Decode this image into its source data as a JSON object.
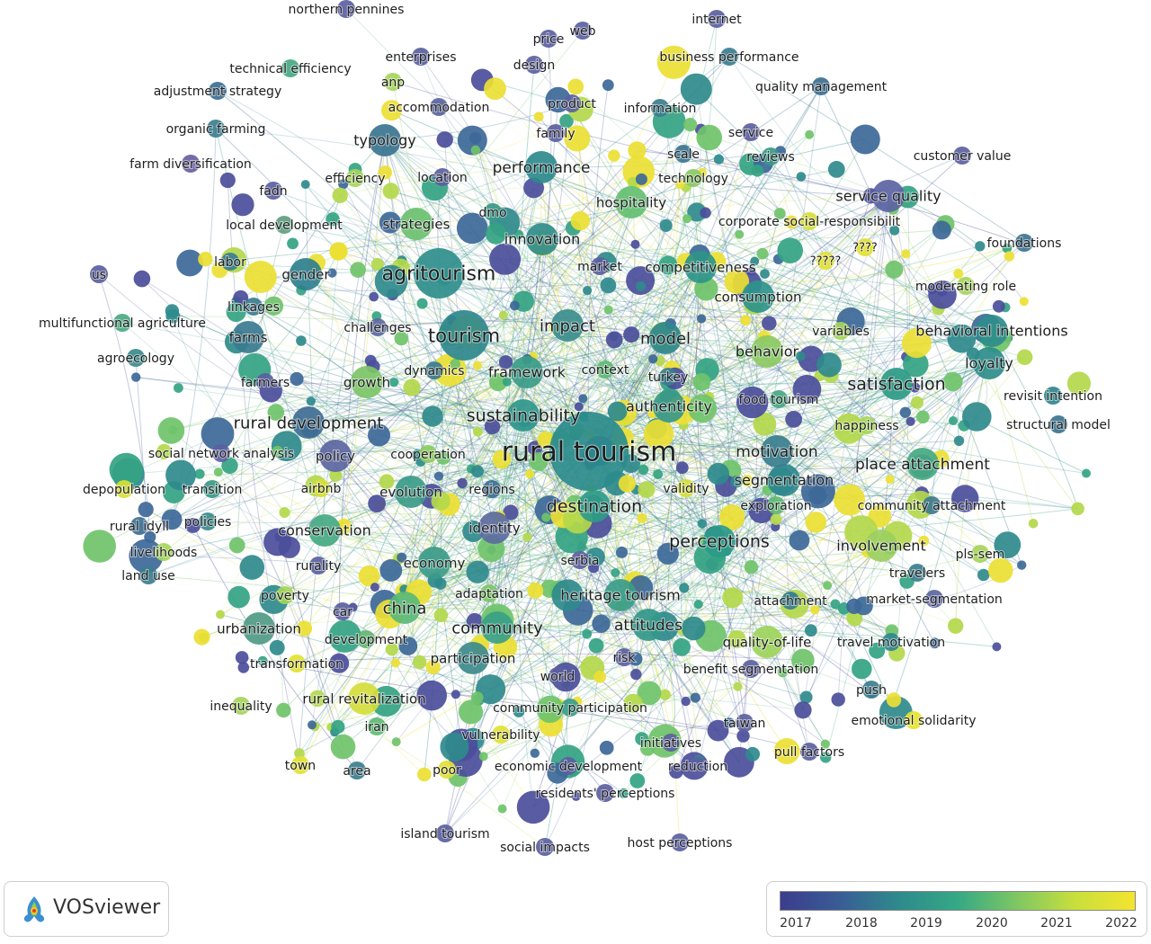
{
  "labels": [
    {
      "t": "rural tourism",
      "c": "#2b8b8c",
      "s": 30,
      "n": "lg"
    },
    {
      "t": "agritourism",
      "c": "#2f8e8c",
      "s": 22,
      "n": "lg"
    },
    {
      "t": "tourism",
      "c": "#2f888d",
      "s": 21,
      "n": "lg"
    },
    {
      "t": "sustainability",
      "c": "#2e968a",
      "s": 19,
      "n": "md"
    },
    {
      "t": "destination",
      "c": "#2f9b87",
      "s": 19,
      "n": "md"
    },
    {
      "t": "perceptions",
      "c": "#2b9a88",
      "s": 19,
      "n": "md"
    },
    {
      "t": "satisfaction",
      "c": "#2c9a87",
      "s": 19,
      "n": "md"
    },
    {
      "t": "impact",
      "c": "#3b8d8c",
      "s": 18,
      "n": "md"
    },
    {
      "t": "model",
      "c": "#2f878d",
      "s": 18,
      "n": "md"
    },
    {
      "t": "rural development",
      "c": "#3e6d93",
      "s": 18,
      "n": "md"
    },
    {
      "t": "community",
      "c": "#3a9f86",
      "s": 18,
      "n": "md"
    },
    {
      "t": "china",
      "c": "#5ab877",
      "s": 18,
      "n": "md"
    },
    {
      "t": "performance",
      "c": "#2d8a8c",
      "s": 17,
      "n": "md"
    },
    {
      "t": "motivation",
      "c": "#3a7e8e",
      "s": 17,
      "n": "md"
    },
    {
      "t": "place attachment",
      "c": "#47a982",
      "s": 17,
      "n": "md"
    },
    {
      "t": "attitudes",
      "c": "#33988a",
      "s": 17,
      "n": "md"
    },
    {
      "t": "conservation",
      "c": "#45a983",
      "s": 16,
      "n": "md"
    },
    {
      "t": "segmentation",
      "c": "#2f878d",
      "s": 16,
      "n": "md"
    },
    {
      "t": "framework",
      "c": "#3b9c88",
      "s": 16,
      "n": "md"
    },
    {
      "t": "typology",
      "c": "#3b7490",
      "s": 16,
      "n": "md"
    },
    {
      "t": "innovation",
      "c": "#2f8c8c",
      "s": 16,
      "n": "md"
    },
    {
      "t": "heritage tourism",
      "c": "#399c88",
      "s": 16,
      "n": "md"
    },
    {
      "t": "involvement",
      "c": "#9bd05e",
      "s": 16,
      "n": "md"
    },
    {
      "t": "service quality",
      "c": "#5b63a3",
      "s": 16,
      "n": "md"
    },
    {
      "t": "behavioral intentions",
      "c": "#2e8c8c",
      "s": 16,
      "n": "md"
    },
    {
      "t": "loyalty",
      "c": "#2c8d8b",
      "s": 16,
      "n": "md"
    },
    {
      "t": "behavior",
      "c": "#8bc962",
      "s": 16,
      "n": "md"
    },
    {
      "t": "authenticity",
      "c": "#3b9887",
      "s": 16,
      "n": "md"
    },
    {
      "t": "competitiveness",
      "c": "#2e9488",
      "s": 15,
      "n": "md"
    },
    {
      "t": "hospitality",
      "c": "#64bf71",
      "s": 15,
      "n": "md"
    },
    {
      "t": "strategies",
      "c": "#6ac06e",
      "s": 15,
      "n": "md"
    },
    {
      "t": "policy",
      "c": "#5b66a1",
      "s": 15,
      "n": "md"
    },
    {
      "t": "growth",
      "c": "#7cc467",
      "s": 15,
      "n": "md"
    },
    {
      "t": "economy",
      "c": "#3b9b88",
      "s": 15,
      "n": "md"
    },
    {
      "t": "identity",
      "c": "#5b6ba0",
      "s": 15,
      "n": "md"
    },
    {
      "t": "evolution",
      "c": "#3b9b88",
      "s": 15,
      "n": "md"
    },
    {
      "t": "participation",
      "c": "#3c8a8c",
      "s": 15,
      "n": "md"
    },
    {
      "t": "gender",
      "c": "#2f7f8e",
      "s": 15,
      "n": "md"
    },
    {
      "t": "farms",
      "c": "#3a7a8f",
      "s": 15,
      "n": "md"
    },
    {
      "t": "urbanization",
      "c": "#4f9a86",
      "s": 15,
      "n": "md"
    },
    {
      "t": "development",
      "c": "#62b572",
      "s": 14,
      "n": "sm"
    },
    {
      "t": "community participation",
      "c": "#3b9c88",
      "s": 14,
      "n": "sm"
    },
    {
      "t": "rural revitalization",
      "c": "#d4dd3a",
      "s": 15,
      "n": "md"
    },
    {
      "t": "consumption",
      "c": "#2e948a",
      "s": 15,
      "n": "md"
    },
    {
      "t": "quality-of-life",
      "c": "#9dd25b",
      "s": 15,
      "n": "md"
    },
    {
      "t": "travel motivation",
      "c": "#2f878d",
      "s": 14,
      "n": "sm"
    },
    {
      "t": "food tourism",
      "c": "#46a782",
      "s": 14,
      "n": "sm"
    },
    {
      "t": "enterprises",
      "c": "#5a5f9f",
      "s": 14,
      "n": "sm"
    },
    {
      "t": "accommodation",
      "c": "#5b63a0",
      "s": 14,
      "n": "sm"
    },
    {
      "t": "information",
      "c": "#3b7e8f",
      "s": 14,
      "n": "sm"
    },
    {
      "t": "business performance",
      "c": "#3b7e8f",
      "s": 14,
      "n": "sm"
    },
    {
      "t": "internet",
      "c": "#5b5fa0",
      "s": 14,
      "n": "sm"
    },
    {
      "t": "technology",
      "c": "#8bc962",
      "s": 14,
      "n": "sm"
    },
    {
      "t": "farm diversification",
      "c": "#6a5ea1",
      "s": 14,
      "n": "sm"
    },
    {
      "t": "local development",
      "c": "#5f9e80",
      "s": 14,
      "n": "sm"
    },
    {
      "t": "challenges",
      "c": "#5c68a0",
      "s": 14,
      "n": "sm"
    },
    {
      "t": "dynamics",
      "c": "#3a7a8f",
      "s": 14,
      "n": "sm"
    },
    {
      "t": "cooperation",
      "c": "#8ccb60",
      "s": 14,
      "n": "sm"
    },
    {
      "t": "regions",
      "c": "#3c6f93",
      "s": 14,
      "n": "sm"
    },
    {
      "t": "adaptation",
      "c": "#7cc468",
      "s": 14,
      "n": "sm"
    },
    {
      "t": "exploration",
      "c": "#5fb873",
      "s": 14,
      "n": "sm"
    },
    {
      "t": "community attachment",
      "c": "#3d7a8f",
      "s": 14,
      "n": "sm"
    },
    {
      "t": "attachment",
      "c": "#3b7e8f",
      "s": 14,
      "n": "sm"
    },
    {
      "t": "market-segmentation",
      "c": "#5b66a1",
      "s": 14,
      "n": "sm"
    },
    {
      "t": "benefit segmentation",
      "c": "#5b5fa0",
      "s": 14,
      "n": "sm"
    },
    {
      "t": "revisit intention",
      "c": "#2f878d",
      "s": 14,
      "n": "sm"
    },
    {
      "t": "structural model",
      "c": "#3c7490",
      "s": 14,
      "n": "sm"
    },
    {
      "t": "moderating role",
      "c": "#a4d459",
      "s": 14,
      "n": "sm"
    },
    {
      "t": "foundations",
      "c": "#3c7490",
      "s": 14,
      "n": "sm"
    },
    {
      "t": "customer value",
      "c": "#5b5fa0",
      "s": 14,
      "n": "sm"
    },
    {
      "t": "quality management",
      "c": "#3b6f91",
      "s": 14,
      "n": "sm"
    },
    {
      "t": "corporate social-responsibilit",
      "c": "#d6de3a",
      "s": 14,
      "n": "sm"
    },
    {
      "t": "northern pennines",
      "c": "#5b5fa0",
      "s": 14,
      "n": "sm"
    },
    {
      "t": "technical efficiency",
      "c": "#48a882",
      "s": 14,
      "n": "sm"
    },
    {
      "t": "adjustment strategy",
      "c": "#3c6f93",
      "s": 14,
      "n": "sm"
    },
    {
      "t": "organic farming",
      "c": "#3b7e8f",
      "s": 14,
      "n": "sm"
    },
    {
      "t": "multifunctional agriculture",
      "c": "#4aa982",
      "s": 14,
      "n": "sm"
    },
    {
      "t": "agroecology",
      "c": "#3c8a8c",
      "s": 14,
      "n": "sm"
    },
    {
      "t": "social network analysis",
      "c": "#5b5fa0",
      "s": 14,
      "n": "sm"
    },
    {
      "t": "depopulation",
      "c": "#d8df38",
      "s": 14,
      "n": "sm"
    },
    {
      "t": "transition",
      "c": "#3b9887",
      "s": 14,
      "n": "sm"
    },
    {
      "t": "rural idyll",
      "c": "#3c6f93",
      "s": 14,
      "n": "sm"
    },
    {
      "t": "policies",
      "c": "#3b8a8c",
      "s": 14,
      "n": "sm"
    },
    {
      "t": "livelihoods",
      "c": "#a6d55a",
      "s": 14,
      "n": "sm"
    },
    {
      "t": "land use",
      "c": "#3b7e8f",
      "s": 14,
      "n": "sm"
    },
    {
      "t": "poverty",
      "c": "#a6d55a",
      "s": 14,
      "n": "sm"
    },
    {
      "t": "transformation",
      "c": "#e1e133",
      "s": 14,
      "n": "sm"
    },
    {
      "t": "inequality",
      "c": "#a6d55a",
      "s": 14,
      "n": "sm"
    },
    {
      "t": "island tourism",
      "c": "#5b5fa0",
      "s": 14,
      "n": "sm"
    },
    {
      "t": "social impacts",
      "c": "#5b5fa0",
      "s": 14,
      "n": "sm"
    },
    {
      "t": "host perceptions",
      "c": "#5b5fa0",
      "s": 14,
      "n": "sm"
    },
    {
      "t": "economic development",
      "c": "#5b5fa0",
      "s": 14,
      "n": "sm"
    },
    {
      "t": "residents' perceptions",
      "c": "#5b5fa0",
      "s": 14,
      "n": "sm"
    },
    {
      "t": "vulnerability",
      "c": "#e1e133",
      "s": 14,
      "n": "sm"
    },
    {
      "t": "emotional solidarity",
      "c": "#e6e231",
      "s": 14,
      "n": "sm"
    },
    {
      "t": "pull factors",
      "c": "#5b5fa0",
      "s": 14,
      "n": "sm"
    },
    {
      "t": "pls-sem",
      "c": "#a6d55a",
      "s": 14,
      "n": "sm"
    },
    {
      "t": "travelers",
      "c": "#3b7e8f",
      "s": 14,
      "n": "sm"
    },
    {
      "t": "happiness",
      "c": "#a6d55a",
      "s": 14,
      "n": "sm"
    },
    {
      "t": "variables",
      "c": "#a6d55a",
      "s": 14,
      "n": "sm"
    },
    {
      "t": "reviews",
      "c": "#3b9887",
      "s": 14,
      "n": "sm"
    },
    {
      "t": "service",
      "c": "#5b5fa0",
      "s": 14,
      "n": "sm"
    },
    {
      "t": "scale",
      "c": "#3c7490",
      "s": 14,
      "n": "sm"
    },
    {
      "t": "family",
      "c": "#5b5fa0",
      "s": 14,
      "n": "sm"
    },
    {
      "t": "product",
      "c": "#5b5fa0",
      "s": 14,
      "n": "sm"
    },
    {
      "t": "design",
      "c": "#5b5fa0",
      "s": 14,
      "n": "sm"
    },
    {
      "t": "price",
      "c": "#5b5fa0",
      "s": 14,
      "n": "sm"
    },
    {
      "t": "web",
      "c": "#5b5fa0",
      "s": 14,
      "n": "sm"
    },
    {
      "t": "anp",
      "c": "#a6d55a",
      "s": 14,
      "n": "sm"
    },
    {
      "t": "fadn",
      "c": "#5b5fa0",
      "s": 14,
      "n": "sm"
    },
    {
      "t": "efficiency",
      "c": "#a6d55a",
      "s": 14,
      "n": "sm"
    },
    {
      "t": "location",
      "c": "#5b5fa0",
      "s": 14,
      "n": "sm"
    },
    {
      "t": "dmo",
      "c": "#3b9887",
      "s": 14,
      "n": "sm"
    },
    {
      "t": "market",
      "c": "#5b5fa0",
      "s": 14,
      "n": "sm"
    },
    {
      "t": "labor",
      "c": "#3b7e8f",
      "s": 14,
      "n": "sm"
    },
    {
      "t": "us",
      "c": "#5b5fa0",
      "s": 14,
      "n": "sm"
    },
    {
      "t": "linkages",
      "c": "#3b7e8f",
      "s": 14,
      "n": "sm"
    },
    {
      "t": "farmers",
      "c": "#5b5fa0",
      "s": 14,
      "n": "sm"
    },
    {
      "t": "context",
      "c": "#5fb873",
      "s": 14,
      "n": "sm"
    },
    {
      "t": "turkey",
      "c": "#3b7e8f",
      "s": 14,
      "n": "sm"
    },
    {
      "t": "validity",
      "c": "#d6de3a",
      "s": 14,
      "n": "sm"
    },
    {
      "t": "airbnb",
      "c": "#d6de3a",
      "s": 14,
      "n": "sm"
    },
    {
      "t": "rurality",
      "c": "#5b5fa0",
      "s": 14,
      "n": "sm"
    },
    {
      "t": "serbia",
      "c": "#5b5fa0",
      "s": 14,
      "n": "sm"
    },
    {
      "t": "car",
      "c": "#5b5fa0",
      "s": 14,
      "n": "sm"
    },
    {
      "t": "risk",
      "c": "#5b5fa0",
      "s": 14,
      "n": "sm"
    },
    {
      "t": "world",
      "c": "#5b5fa0",
      "s": 14,
      "n": "sm"
    },
    {
      "t": "iran",
      "c": "#5fb873",
      "s": 14,
      "n": "sm"
    },
    {
      "t": "initiatives",
      "c": "#5b5fa0",
      "s": 14,
      "n": "sm"
    },
    {
      "t": "reduction",
      "c": "#5b5fa0",
      "s": 14,
      "n": "sm"
    },
    {
      "t": "taiwan",
      "c": "#5b5fa0",
      "s": 14,
      "n": "sm"
    },
    {
      "t": "push",
      "c": "#3b7e8f",
      "s": 14,
      "n": "sm"
    },
    {
      "t": "town",
      "c": "#e1e133",
      "s": 14,
      "n": "sm"
    },
    {
      "t": "area",
      "c": "#3b7e8f",
      "s": 14,
      "n": "sm"
    },
    {
      "t": "poor",
      "c": "#e1e133",
      "s": 14,
      "n": "sm"
    },
    {
      "t": "?????",
      "c": "#e1e133",
      "s": 13,
      "n": "sm"
    },
    {
      "t": "????",
      "c": "#e1e133",
      "s": 13,
      "n": "sm"
    }
  ],
  "app": {
    "name": "VOSviewer"
  },
  "legend": {
    "ticks": [
      "2017",
      "2018",
      "2019",
      "2020",
      "2021",
      "2022"
    ],
    "gradient": [
      "#3b3d8c",
      "#3a5c96",
      "#2e8a8c",
      "#35a885",
      "#7ec763",
      "#c9df3c",
      "#f4e42f"
    ]
  },
  "palette": [
    "#4b4e9a",
    "#3d6898",
    "#2f8a8c",
    "#34a383",
    "#6fc36a",
    "#b3d84b",
    "#ecdf33"
  ]
}
